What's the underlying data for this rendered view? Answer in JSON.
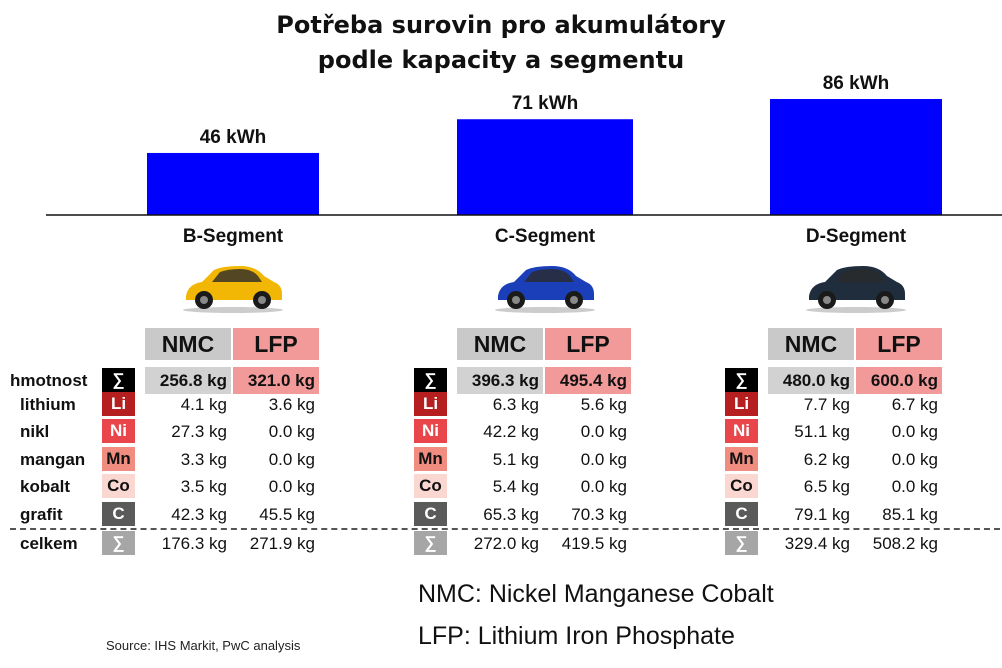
{
  "title_line1": "Potřeba surovin pro akumulátory",
  "title_line2": "podle kapacity a segmentu",
  "chart_data": {
    "type": "bar",
    "categories": [
      "B-Segment",
      "C-Segment",
      "D-Segment"
    ],
    "values": [
      46,
      71,
      86
    ],
    "value_labels": [
      "46 kWh",
      "71 kWh",
      "86 kWh"
    ],
    "unit": "kWh"
  },
  "table": {
    "headers": [
      "NMC",
      "LFP"
    ],
    "row_labels": [
      "hmotnost",
      "lithium",
      "nikl",
      "mangan",
      "kobalt",
      "grafit",
      "celkem"
    ],
    "badges": [
      {
        "text": "∑",
        "bg": "#000000",
        "fg": "#ffffff"
      },
      {
        "text": "Li",
        "bg": "#b51f1f",
        "fg": "#ffffff"
      },
      {
        "text": "Ni",
        "bg": "#e8464a",
        "fg": "#ffffff"
      },
      {
        "text": "Mn",
        "bg": "#f08c80",
        "fg": "#111111"
      },
      {
        "text": "Co",
        "bg": "#fbd7d2",
        "fg": "#111111"
      },
      {
        "text": "C",
        "bg": "#5a5a5a",
        "fg": "#ffffff"
      },
      {
        "text": "∑",
        "bg": "#a6a6a6",
        "fg": "#ffffff"
      }
    ],
    "segments": [
      {
        "nmc": [
          "256.8 kg",
          "4.1 kg",
          "27.3 kg",
          "3.3 kg",
          "3.5 kg",
          "42.3 kg",
          "176.3 kg"
        ],
        "lfp": [
          "321.0 kg",
          "3.6 kg",
          "0.0 kg",
          "0.0 kg",
          "0.0 kg",
          "45.5 kg",
          "271.9 kg"
        ]
      },
      {
        "nmc": [
          "396.3 kg",
          "6.3 kg",
          "42.2 kg",
          "5.1 kg",
          "5.4 kg",
          "65.3 kg",
          "272.0 kg"
        ],
        "lfp": [
          "495.4 kg",
          "5.6 kg",
          "0.0 kg",
          "0.0 kg",
          "0.0 kg",
          "70.3 kg",
          "419.5 kg"
        ]
      },
      {
        "nmc": [
          "480.0 kg",
          "7.7 kg",
          "51.1 kg",
          "6.2 kg",
          "6.5 kg",
          "79.1 kg",
          "329.4 kg"
        ],
        "lfp": [
          "600.0 kg",
          "6.7 kg",
          "0.0 kg",
          "0.0 kg",
          "0.0 kg",
          "85.1 kg",
          "508.2 kg"
        ]
      }
    ]
  },
  "legend": {
    "nmc": "NMC: Nickel Manganese Cobalt",
    "lfp": "LFP: Lithium Iron Phosphate"
  },
  "source": "Source: IHS Markit, PwC analysis",
  "colors": {
    "bar": "#0000ff",
    "car_b": "#f2b705",
    "car_c": "#1b3fb8",
    "car_d": "#1f2d3d"
  }
}
